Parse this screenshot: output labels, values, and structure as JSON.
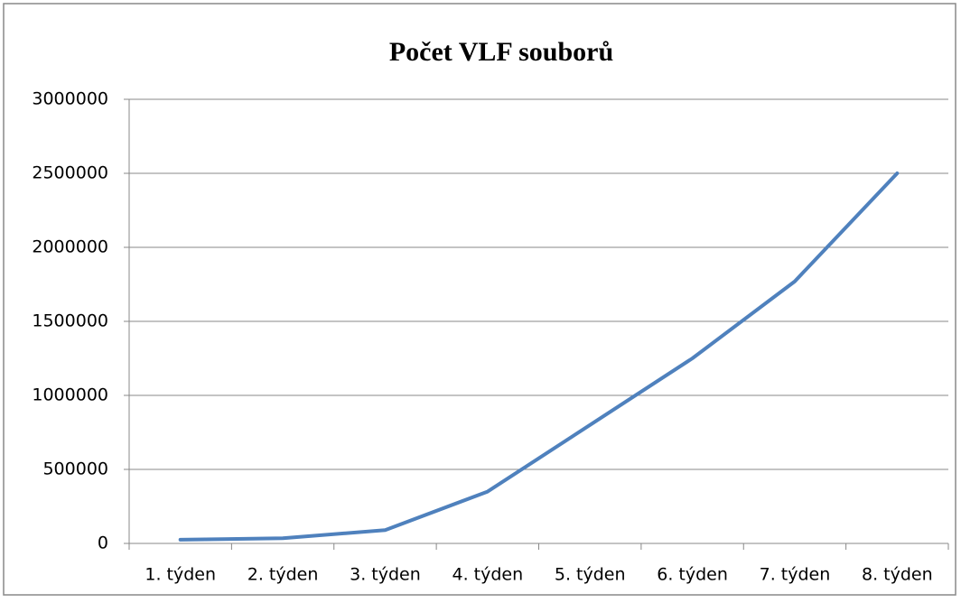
{
  "chart_data": {
    "type": "line",
    "title": "Počet VLF souborů",
    "categories": [
      "1. týden",
      "2. týden",
      "3. týden",
      "4. týden",
      "5. týden",
      "6. týden",
      "7. týden",
      "8. týden"
    ],
    "series": [
      {
        "name": "Počet VLF souborů",
        "color": "#4f81bd",
        "values": [
          25000,
          35000,
          90000,
          350000,
          800000,
          1250000,
          1770000,
          2500000
        ]
      }
    ],
    "ylim": [
      0,
      3000000
    ],
    "yticks": [
      0,
      500000,
      1000000,
      1500000,
      2000000,
      2500000,
      3000000
    ],
    "grid": true
  }
}
